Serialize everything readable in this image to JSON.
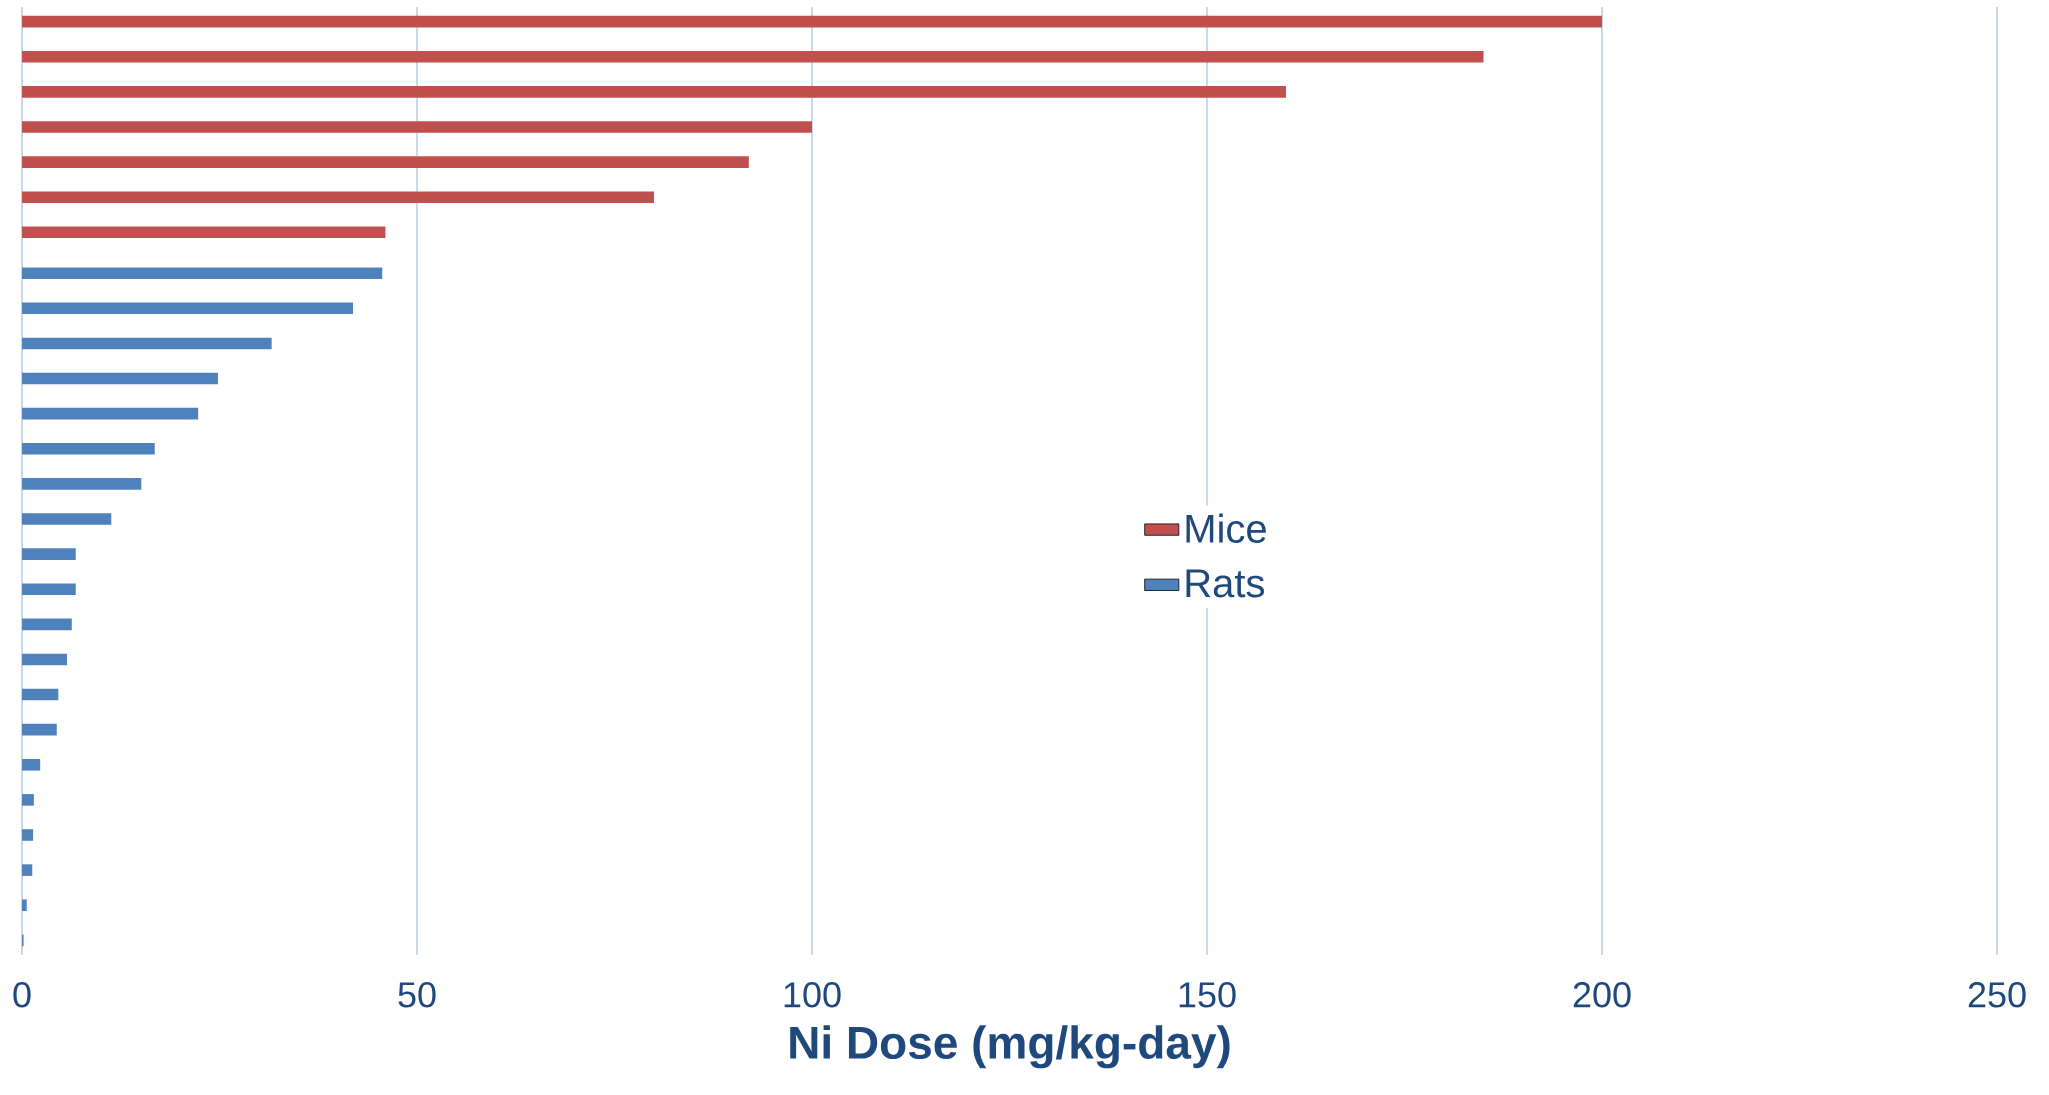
{
  "chart_data": {
    "type": "bar",
    "orientation": "horizontal",
    "xlabel": "Ni Dose (mg/kg-day)",
    "categories": [
      null,
      null,
      null,
      null,
      null,
      null,
      null,
      null,
      null,
      null,
      null,
      null,
      null,
      null,
      null,
      null,
      null,
      null,
      null,
      null,
      null,
      null,
      null,
      null,
      null,
      null,
      null
    ],
    "series": [
      {
        "name": "Mice",
        "color": "#c0504d",
        "values": [
          200,
          185,
          160,
          100,
          92,
          80,
          46,
          null,
          null,
          null,
          null,
          null,
          null,
          null,
          null,
          null,
          null,
          null,
          null,
          null,
          null,
          null,
          null,
          null,
          null,
          null,
          null
        ]
      },
      {
        "name": "Rats",
        "color": "#4f81bd",
        "values": [
          null,
          null,
          null,
          null,
          null,
          null,
          null,
          45.6,
          41.9,
          31.6,
          24.8,
          22.3,
          16.8,
          15.1,
          11.3,
          6.8,
          6.8,
          6.3,
          5.7,
          4.6,
          4.4,
          2.3,
          1.5,
          1.4,
          1.3,
          0.6,
          0.2
        ]
      }
    ],
    "xlim": [
      0,
      250
    ],
    "xticks": [
      0,
      50,
      100,
      150,
      200,
      250
    ],
    "grid": "x",
    "legend": "right"
  }
}
